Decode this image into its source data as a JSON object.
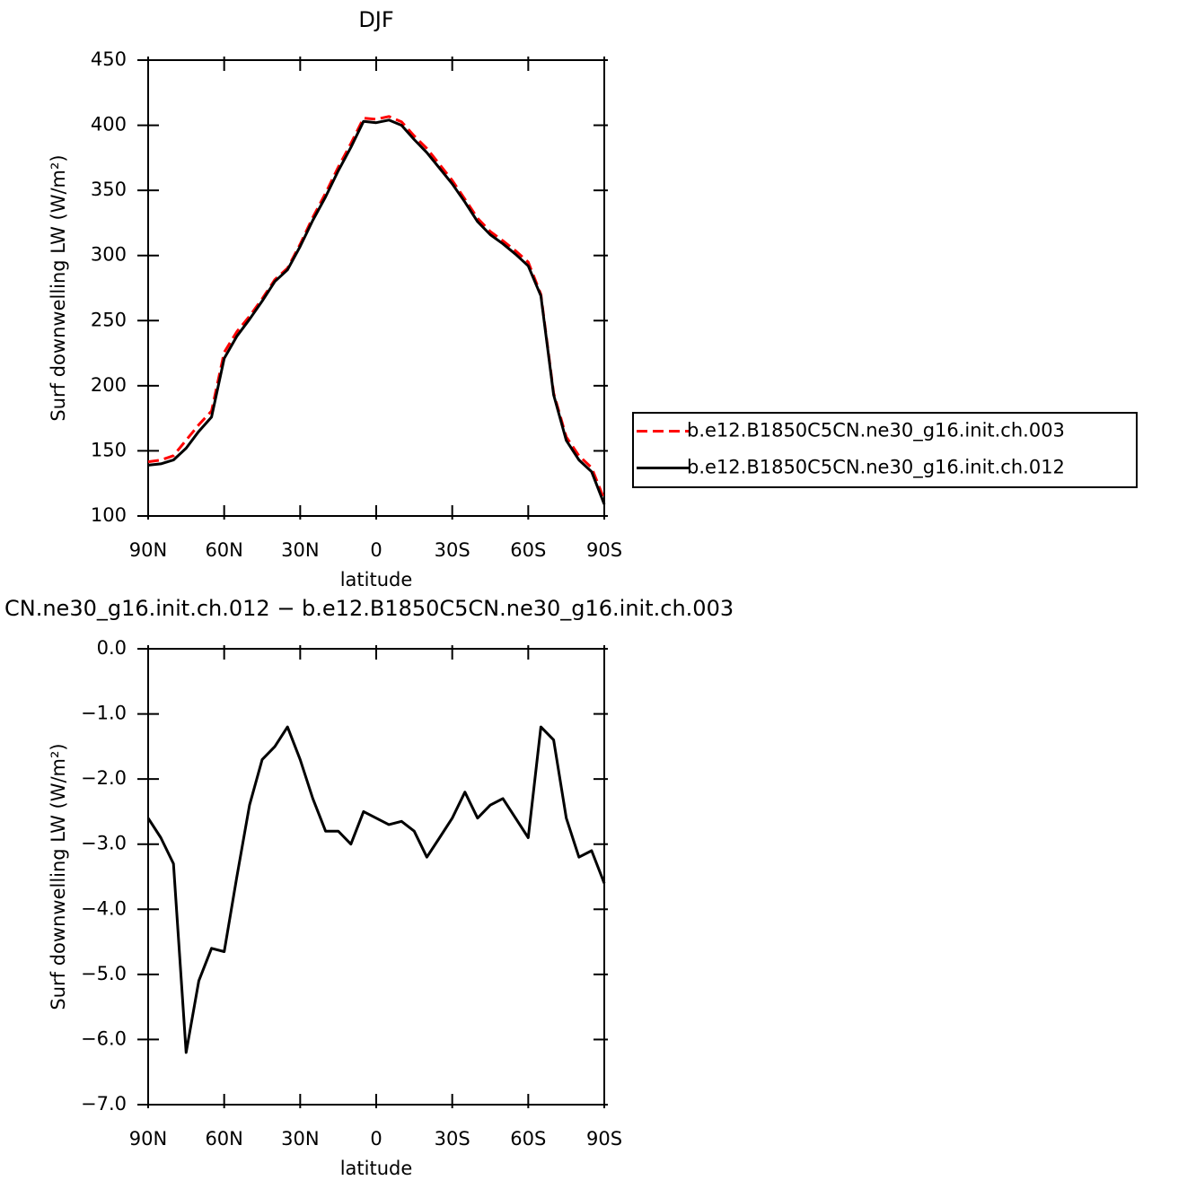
{
  "chart_data": [
    {
      "type": "line",
      "title": "DJF",
      "xlabel": "latitude",
      "ylabel": "Surf downwelling LW (W/m²)",
      "x": [
        90,
        85,
        80,
        75,
        70,
        65,
        60,
        55,
        50,
        45,
        40,
        35,
        30,
        25,
        20,
        15,
        10,
        5,
        0,
        -5,
        -10,
        -15,
        -20,
        -25,
        -30,
        -35,
        -40,
        -45,
        -50,
        -55,
        -60,
        -65,
        -70,
        -75,
        -80,
        -85,
        -90
      ],
      "series": [
        {
          "name": "b.e12.B1850C5CN.ne30_g16.init.ch.003",
          "color": "#ff0000",
          "linestyle": "dashed",
          "values": [
            141.6,
            142.9,
            146.3,
            158.2,
            170.1,
            180.6,
            225.7,
            241.5,
            253.4,
            266.7,
            281.5,
            290.2,
            308.7,
            329.3,
            347.8,
            367.8,
            386,
            405.5,
            404.6,
            406.7,
            402.7,
            391.8,
            382.2,
            369.9,
            357.6,
            343.2,
            328.6,
            318.4,
            311.3,
            303.6,
            294.9,
            270.2,
            194.4,
            160.6,
            146.2,
            137.1,
            112.6
          ]
        },
        {
          "name": "b.e12.B1850C5CN.ne30_g16.init.ch.012",
          "color": "#000000",
          "linestyle": "solid",
          "values": [
            139,
            140,
            143,
            152,
            165,
            176,
            221,
            238,
            251,
            265,
            280,
            289,
            307,
            327,
            345,
            365,
            383,
            403,
            402,
            404,
            400,
            389,
            379,
            367,
            355,
            341,
            326,
            316,
            309,
            301,
            292,
            269,
            193,
            158,
            143,
            134,
            109
          ]
        }
      ],
      "xlim": [
        90,
        -90
      ],
      "ylim": [
        100,
        450
      ],
      "xticks": [
        {
          "value": 90,
          "label": "90N"
        },
        {
          "value": 60,
          "label": "60N"
        },
        {
          "value": 30,
          "label": "30N"
        },
        0,
        {
          "value": -30,
          "label": "30S"
        },
        {
          "value": -60,
          "label": "60S"
        },
        {
          "value": -90,
          "label": "90S"
        }
      ],
      "yticks": [
        100,
        150,
        200,
        250,
        300,
        350,
        400,
        450
      ],
      "legend": "right"
    },
    {
      "type": "line",
      "title": "CN.ne30_g16.init.ch.012 − b.e12.B1850C5CN.ne30_g16.init.ch.003",
      "xlabel": "latitude",
      "ylabel": "Surf downwelling LW (W/m²)",
      "x": [
        90,
        85,
        80,
        75,
        70,
        65,
        60,
        55,
        50,
        45,
        40,
        35,
        30,
        25,
        20,
        15,
        10,
        5,
        0,
        -5,
        -10,
        -15,
        -20,
        -25,
        -30,
        -35,
        -40,
        -45,
        -50,
        -55,
        -60,
        -65,
        -70,
        -75,
        -80,
        -85,
        -90
      ],
      "series": [
        {
          "color": "#000000",
          "linestyle": "solid",
          "values": [
            -2.6,
            -2.9,
            -3.3,
            -6.2,
            -5.1,
            -4.6,
            -4.65,
            -3.5,
            -2.4,
            -1.7,
            -1.5,
            -1.2,
            -1.7,
            -2.3,
            -2.8,
            -2.8,
            -3.0,
            -2.5,
            -2.6,
            -2.7,
            -2.65,
            -2.8,
            -3.2,
            -2.9,
            -2.6,
            -2.2,
            -2.6,
            -2.4,
            -2.3,
            -2.6,
            -2.9,
            -1.2,
            -1.4,
            -2.6,
            -3.2,
            -3.1,
            -3.6
          ]
        }
      ],
      "xlim": [
        90,
        -90
      ],
      "ylim": [
        -7,
        0
      ],
      "xticks": [
        {
          "value": 90,
          "label": "90N"
        },
        {
          "value": 60,
          "label": "60N"
        },
        {
          "value": 30,
          "label": "30N"
        },
        0,
        {
          "value": -30,
          "label": "30S"
        },
        {
          "value": -60,
          "label": "60S"
        },
        {
          "value": -90,
          "label": "90S"
        }
      ],
      "yticks": [
        {
          "value": -7,
          "label": "−7.0"
        },
        {
          "value": -6,
          "label": "−6.0"
        },
        {
          "value": -5,
          "label": "−5.0"
        },
        {
          "value": -4,
          "label": "−4.0"
        },
        {
          "value": -3,
          "label": "−3.0"
        },
        {
          "value": -2,
          "label": "−2.0"
        },
        {
          "value": -1,
          "label": "−1.0"
        },
        {
          "value": 0,
          "label": "0.0"
        }
      ]
    }
  ]
}
